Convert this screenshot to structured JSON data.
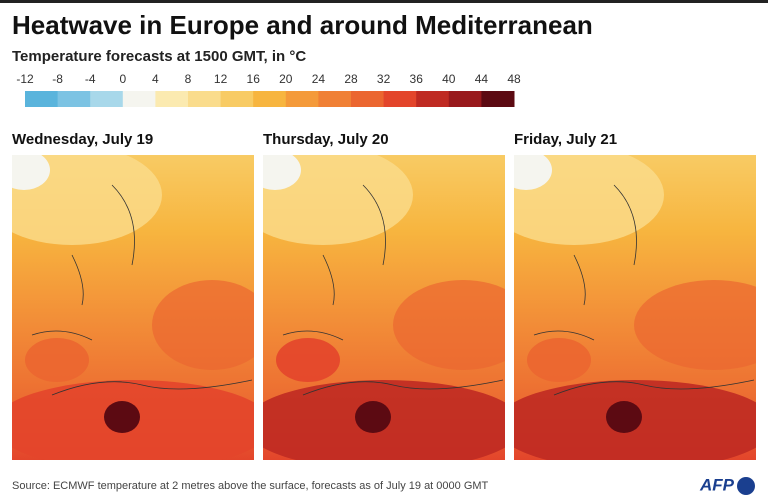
{
  "header": {
    "title": "Heatwave in Europe and around Mediterranean",
    "subtitle": "Temperature forecasts at 1500 GMT, in °C"
  },
  "legend": {
    "ticks": [
      -12,
      -8,
      -4,
      0,
      4,
      8,
      12,
      16,
      20,
      24,
      28,
      32,
      36,
      40,
      44,
      48
    ],
    "colors": [
      "#5ab4dc",
      "#7cc3e3",
      "#a8d8ea",
      "#f5f5ef",
      "#fbeab0",
      "#fadc8c",
      "#f8cb64",
      "#f7b53f",
      "#f49a3a",
      "#f08035",
      "#eb6630",
      "#e3452b",
      "#bf2a22",
      "#99191c",
      "#5c0a12"
    ]
  },
  "panels": [
    {
      "title": "Wednesday, July 19"
    },
    {
      "title": "Thursday, July 20"
    },
    {
      "title": "Friday, July 21"
    }
  ],
  "footer": {
    "source": "Source: ECMWF temperature at 2 metres above the surface, forecasts as of July 19 at 0000 GMT",
    "logo": "AFP"
  }
}
